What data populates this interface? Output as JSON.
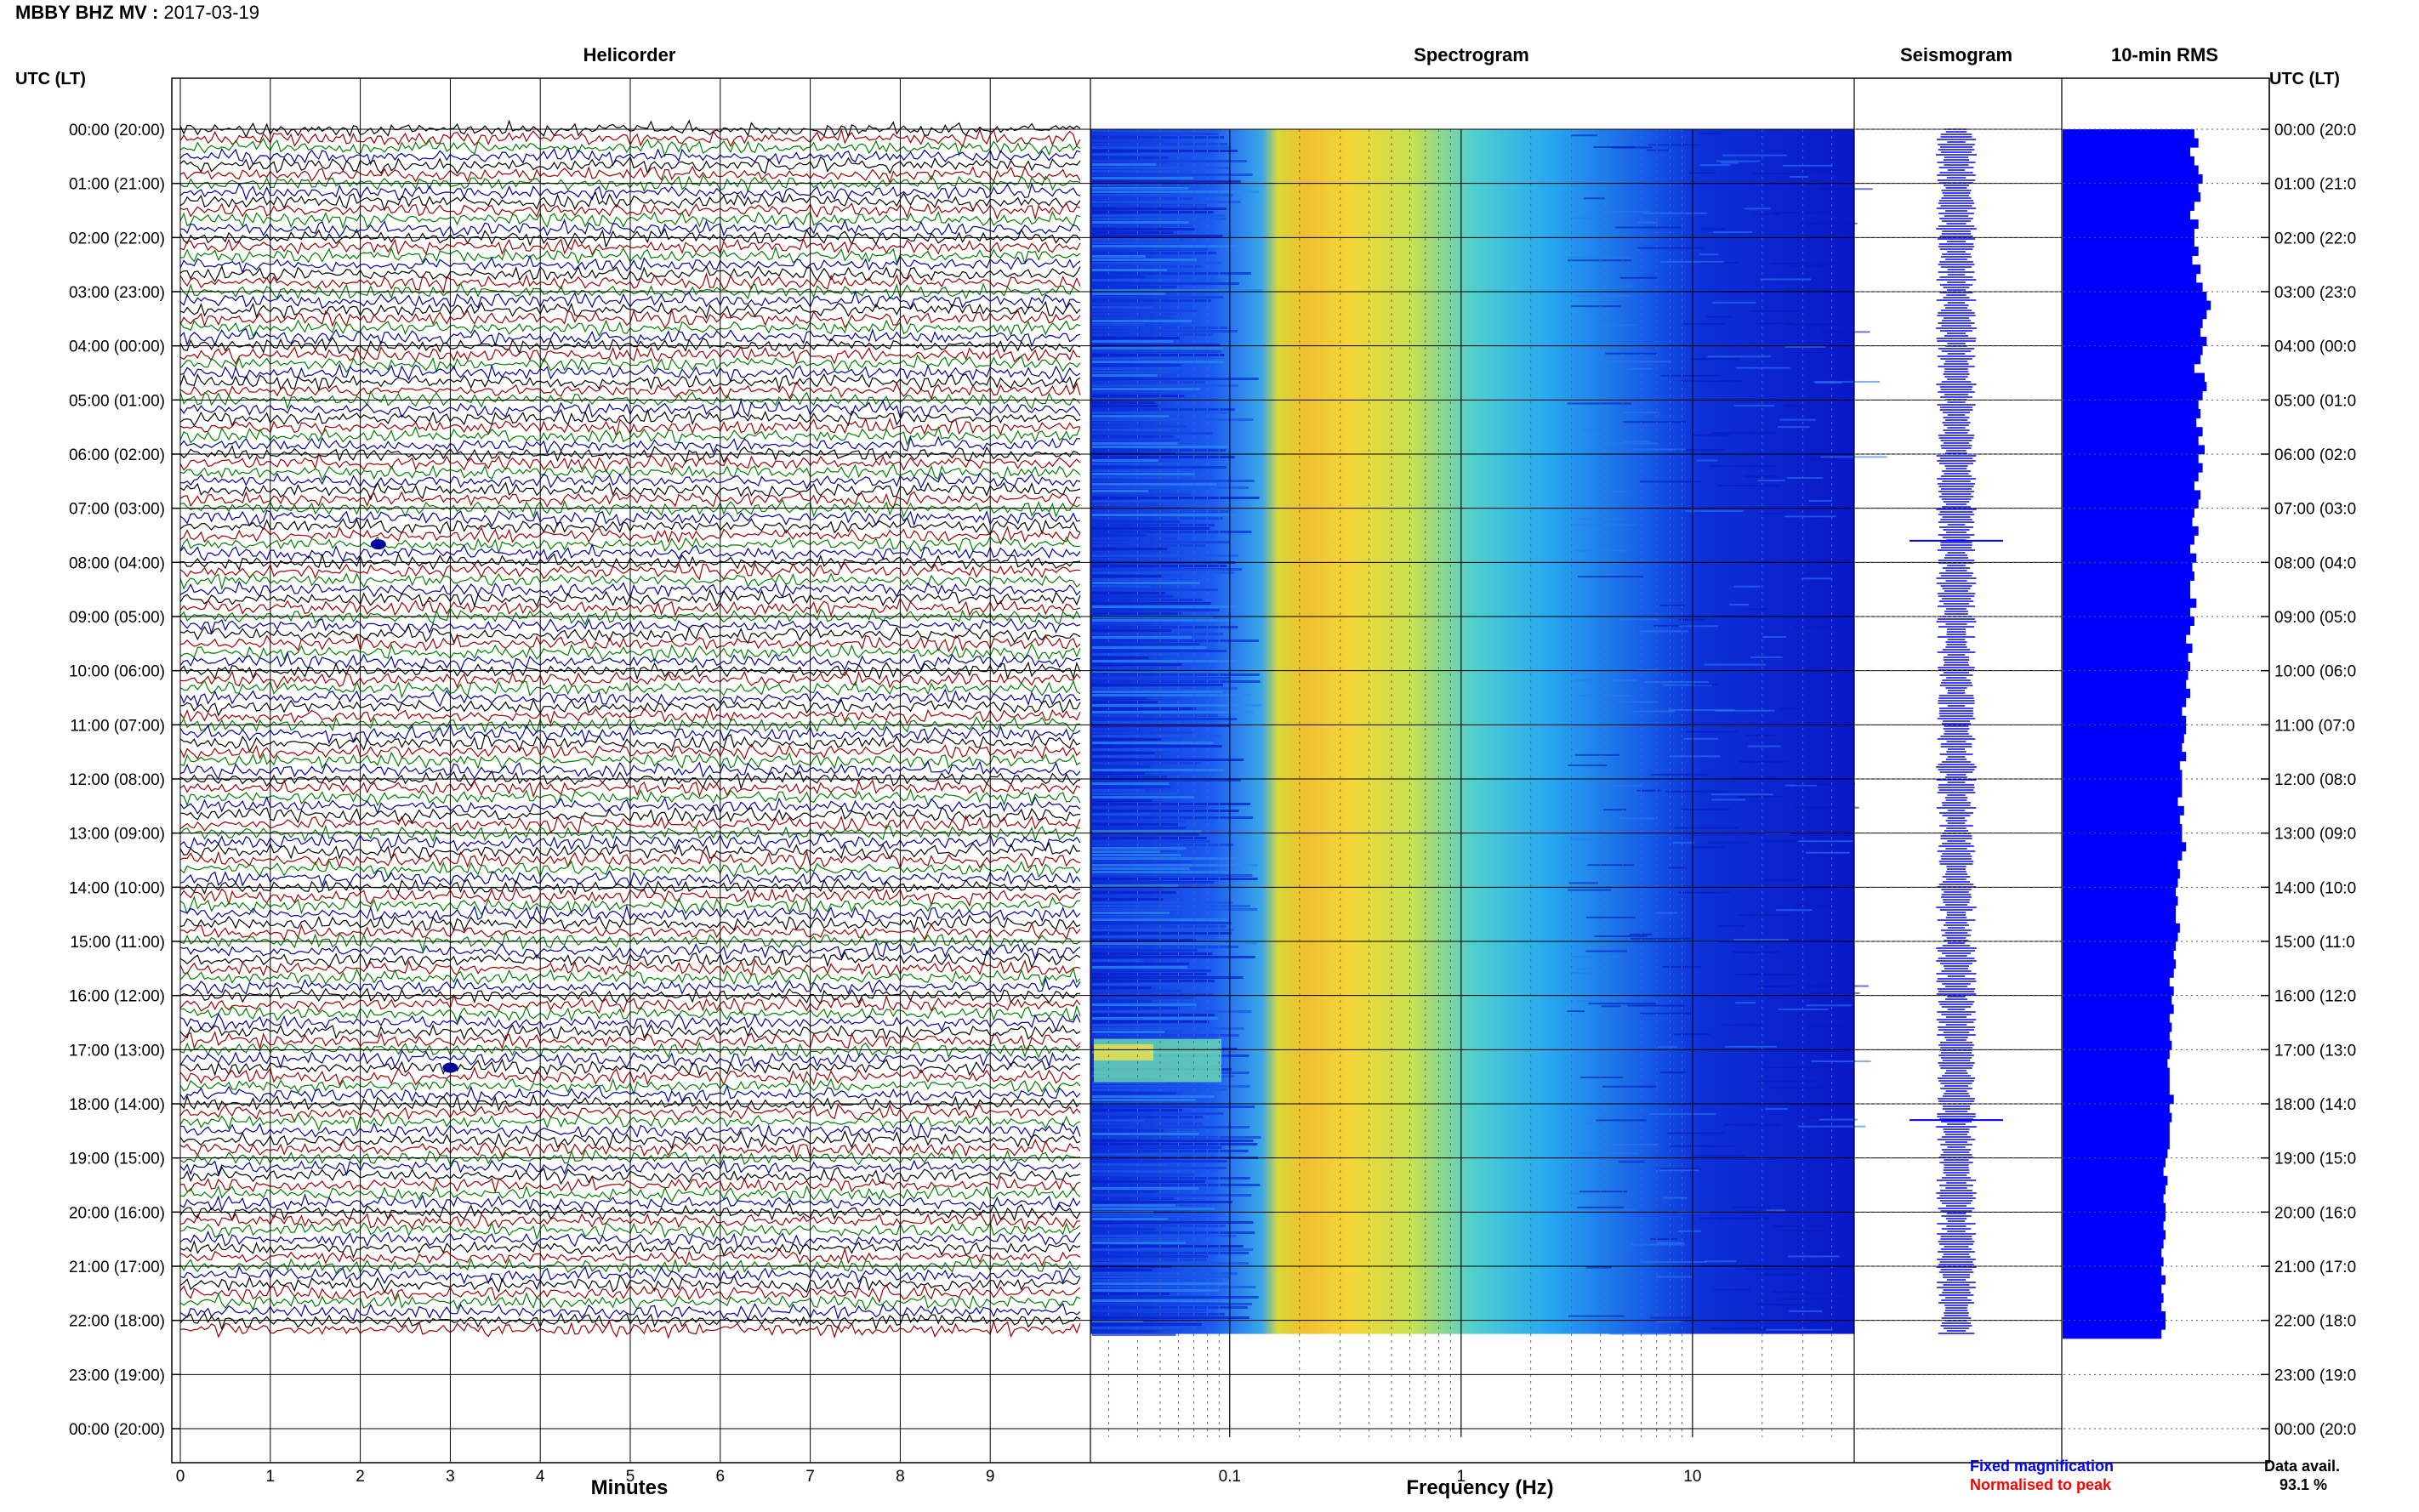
{
  "header": {
    "station": "MBBY BHZ MV",
    "separator": ":",
    "date": "2017-03-19"
  },
  "panels": {
    "helicorder": "Helicorder",
    "spectrogram": "Spectrogram",
    "seismogram": "Seismogram",
    "rms": "10-min RMS"
  },
  "time_header": "UTC (LT)",
  "legend": {
    "fixed": "Fixed magnification",
    "fixed_color": "#0000ff",
    "normalised": "Normalised to peak",
    "normalised_color": "#ff0000"
  },
  "data_avail": {
    "label": "Data avail.",
    "value": "93.1 %"
  },
  "colors": {
    "trace_cycle": [
      "#000000",
      "#a00000",
      "#008000",
      "#0000a0"
    ],
    "rms_fill": "#0000ff",
    "seis_trace": "#0000ff"
  },
  "chart_data": {
    "type": "heatmap",
    "helicorder": {
      "xlabel": "Minutes",
      "x_ticks": [
        "0",
        "1",
        "2",
        "3",
        "4",
        "5",
        "6",
        "7",
        "8",
        "9"
      ],
      "xlim": [
        0,
        10
      ],
      "row_minutes": 10,
      "data_hours": 22.25
    },
    "spectrogram": {
      "xlabel": "Frequency (Hz)",
      "x_scale": "log",
      "xlim": [
        0.025,
        50
      ],
      "x_ticks": [
        {
          "value": 0.1,
          "label": "0.1"
        },
        {
          "value": 1,
          "label": "1"
        },
        {
          "value": 10,
          "label": "10"
        }
      ]
    },
    "y_ticks_left": [
      "00:00 (20:00)",
      "01:00 (21:00)",
      "02:00 (22:00)",
      "03:00 (23:00)",
      "04:00 (00:00)",
      "05:00 (01:00)",
      "06:00 (02:00)",
      "07:00 (03:00)",
      "08:00 (04:00)",
      "09:00 (05:00)",
      "10:00 (06:00)",
      "11:00 (07:00)",
      "12:00 (08:00)",
      "13:00 (09:00)",
      "14:00 (10:00)",
      "15:00 (11:00)",
      "16:00 (12:00)",
      "17:00 (13:00)",
      "18:00 (14:00)",
      "19:00 (15:00)",
      "20:00 (16:00)",
      "21:00 (17:00)",
      "22:00 (18:00)",
      "23:00 (19:00)",
      "00:00 (20:00)"
    ],
    "y_ticks_right": [
      "00:00 (20:0",
      "01:00 (21:0",
      "02:00 (22:0",
      "03:00 (23:0",
      "04:00 (00:0",
      "05:00 (01:0",
      "06:00 (02:0",
      "07:00 (03:0",
      "08:00 (04:0",
      "09:00 (05:0",
      "10:00 (06:0",
      "11:00 (07:0",
      "12:00 (08:0",
      "13:00 (09:0",
      "14:00 (10:0",
      "15:00 (11:0",
      "16:00 (12:0",
      "17:00 (13:0",
      "18:00 (14:0",
      "19:00 (15:0",
      "20:00 (16:0",
      "21:00 (17:0",
      "22:00 (18:0",
      "23:00 (19:0",
      "00:00 (20:0"
    ],
    "rms_10min": [
      0.64,
      0.66,
      0.62,
      0.64,
      0.66,
      0.68,
      0.66,
      0.67,
      0.64,
      0.62,
      0.66,
      0.64,
      0.64,
      0.66,
      0.63,
      0.67,
      0.65,
      0.68,
      0.7,
      0.72,
      0.7,
      0.68,
      0.67,
      0.7,
      0.68,
      0.67,
      0.64,
      0.69,
      0.7,
      0.68,
      0.66,
      0.67,
      0.65,
      0.68,
      0.66,
      0.69,
      0.66,
      0.68,
      0.66,
      0.64,
      0.67,
      0.66,
      0.64,
      0.63,
      0.66,
      0.64,
      0.62,
      0.65,
      0.63,
      0.64,
      0.62,
      0.62,
      0.65,
      0.62,
      0.64,
      0.62,
      0.6,
      0.63,
      0.61,
      0.62,
      0.61,
      0.6,
      0.62,
      0.6,
      0.58,
      0.6,
      0.6,
      0.59,
      0.58,
      0.6,
      0.57,
      0.58,
      0.58,
      0.58,
      0.56,
      0.59,
      0.57,
      0.58,
      0.58,
      0.6,
      0.58,
      0.56,
      0.57,
      0.56,
      0.55,
      0.56,
      0.55,
      0.55,
      0.57,
      0.56,
      0.55,
      0.54,
      0.55,
      0.54,
      0.52,
      0.54,
      0.53,
      0.54,
      0.52,
      0.53,
      0.52,
      0.53,
      0.52,
      0.51,
      0.52,
      0.52,
      0.52,
      0.54,
      0.52,
      0.53,
      0.52,
      0.52,
      0.52,
      0.51,
      0.5,
      0.49,
      0.51,
      0.5,
      0.49,
      0.5,
      0.5,
      0.49,
      0.5,
      0.49,
      0.48,
      0.49,
      0.48,
      0.5,
      0.48,
      0.49,
      0.48,
      0.5,
      0.5,
      0.48,
      0.49,
      0.48
    ],
    "events": [
      {
        "time": "07:40",
        "minute": 2.2,
        "label": ""
      },
      {
        "time": "17:20",
        "minute": 3.0,
        "label": ""
      }
    ]
  }
}
